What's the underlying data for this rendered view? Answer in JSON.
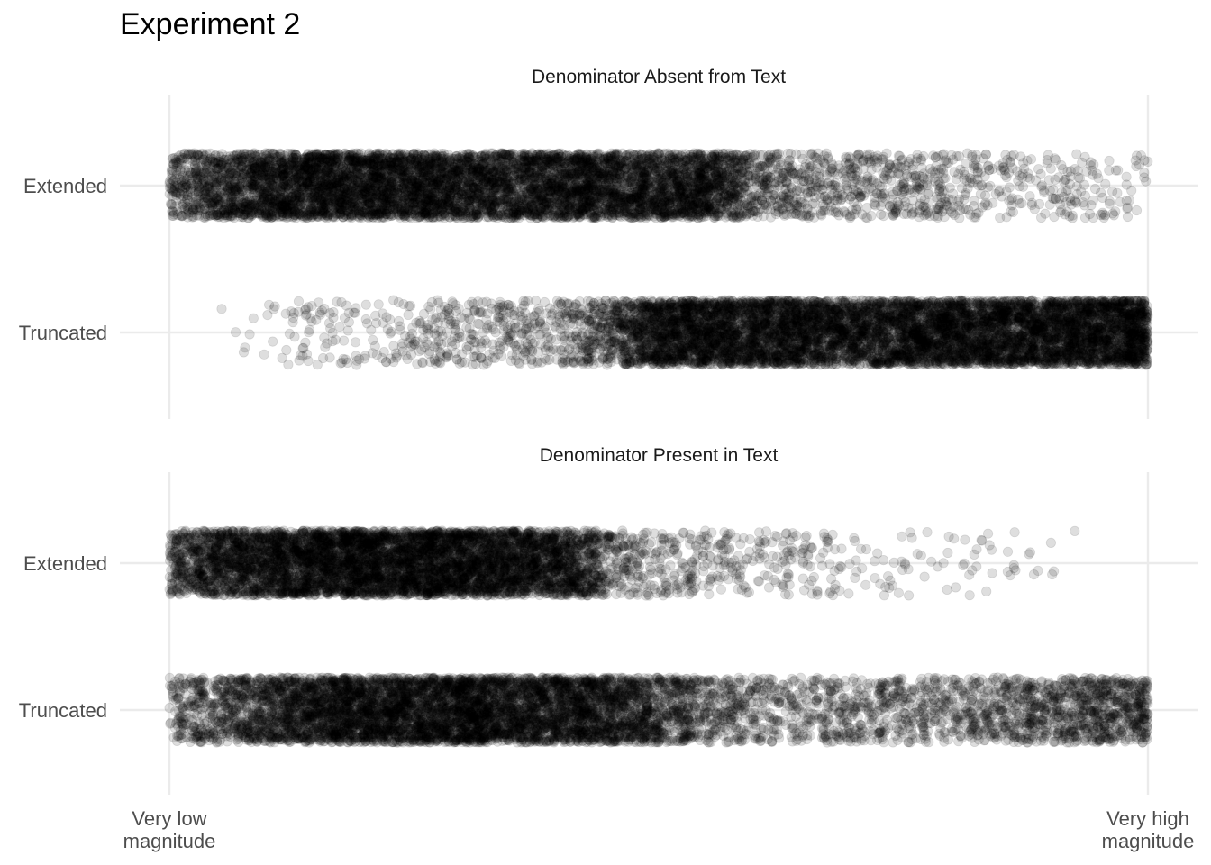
{
  "chart_data": {
    "type": "scatter",
    "title": "Experiment 2",
    "x_tick_labels": [
      [
        "Very low",
        "magnitude"
      ],
      [
        "Very high",
        "magnitude"
      ]
    ],
    "x_range": [
      0,
      1
    ],
    "y_categories": [
      "Extended",
      "Truncated"
    ],
    "point_color": "#000000",
    "point_opacity": 0.13,
    "gridline_color": "#ebebeb",
    "grid": true,
    "panels": [
      {
        "title": "Denominator Absent from Text",
        "rows": [
          {
            "category": "Extended",
            "distribution": "x position density, fraction of scale",
            "bins": [
              0.0,
              0.05,
              0.1,
              0.15,
              0.2,
              0.25,
              0.3,
              0.35,
              0.4,
              0.45,
              0.5,
              0.55,
              0.6,
              0.65,
              0.7,
              0.75,
              0.8,
              0.85,
              0.9,
              0.95,
              1.0
            ],
            "density": [
              3,
              6,
              8,
              9,
              9,
              9,
              8,
              8,
              8,
              8,
              7,
              9,
              3,
              2,
              2,
              1.5,
              1.5,
              1,
              0.8,
              0.6,
              0.6
            ]
          },
          {
            "category": "Truncated",
            "distribution": "x position density, fraction of scale",
            "bins": [
              0.0,
              0.05,
              0.1,
              0.15,
              0.2,
              0.25,
              0.3,
              0.35,
              0.4,
              0.45,
              0.5,
              0.55,
              0.6,
              0.65,
              0.7,
              0.75,
              0.8,
              0.85,
              0.9,
              0.95,
              1.0
            ],
            "density": [
              0,
              0,
              0.2,
              0.5,
              0.7,
              0.9,
              1.2,
              1.5,
              1.8,
              4,
              8,
              9,
              9,
              8,
              8,
              9,
              9,
              9,
              9,
              9,
              10
            ]
          }
        ]
      },
      {
        "title": "Denominator Present in Text",
        "rows": [
          {
            "category": "Extended",
            "distribution": "x position density, fraction of scale",
            "bins": [
              0.0,
              0.05,
              0.1,
              0.15,
              0.2,
              0.25,
              0.3,
              0.35,
              0.4,
              0.45,
              0.5,
              0.55,
              0.6,
              0.65,
              0.7,
              0.75,
              0.8,
              0.85,
              0.9,
              0.95,
              1.0
            ],
            "density": [
              4,
              7,
              8,
              10,
              10,
              9,
              10,
              9,
              9,
              3,
              1.2,
              1.0,
              0.8,
              0.6,
              0.4,
              0.3,
              0.2,
              0.2,
              0.1,
              0,
              0
            ]
          },
          {
            "category": "Truncated",
            "distribution": "x position density, fraction of scale",
            "bins": [
              0.0,
              0.05,
              0.1,
              0.15,
              0.2,
              0.25,
              0.3,
              0.35,
              0.4,
              0.45,
              0.5,
              0.55,
              0.6,
              0.65,
              0.7,
              0.75,
              0.8,
              0.85,
              0.9,
              0.95,
              1.0
            ],
            "density": [
              2,
              4,
              6,
              8,
              9,
              9,
              9,
              9,
              8,
              7,
              5,
              3,
              2,
              2,
              2,
              2,
              2,
              3,
              3,
              4,
              5
            ]
          }
        ]
      }
    ]
  }
}
